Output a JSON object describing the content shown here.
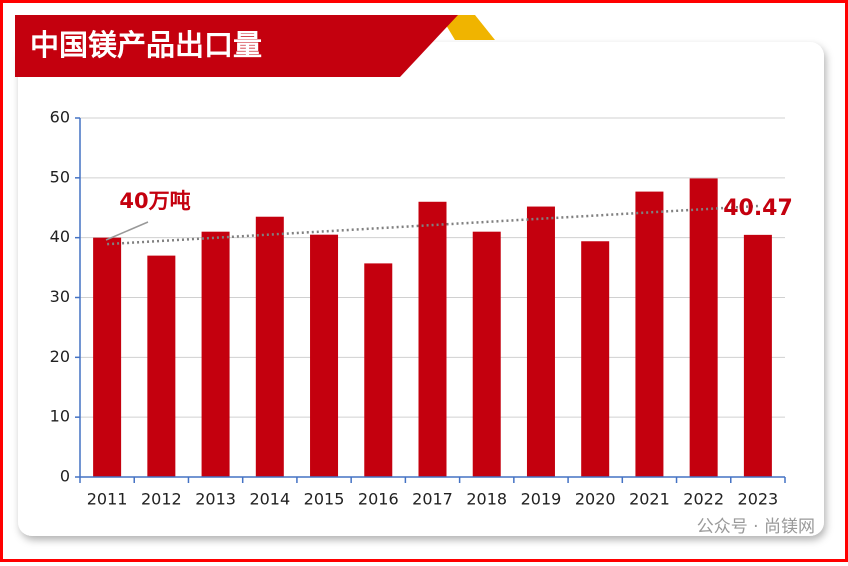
{
  "chart_data": {
    "type": "bar",
    "title": "中国镁产品出口量",
    "categories": [
      "2011",
      "2012",
      "2013",
      "2014",
      "2015",
      "2016",
      "2017",
      "2018",
      "2019",
      "2020",
      "2021",
      "2022",
      "2023"
    ],
    "values": [
      40,
      37,
      41,
      43.5,
      40.5,
      35.7,
      46,
      41,
      45.2,
      39.4,
      47.7,
      49.9,
      40.47
    ],
    "color": "#c4000e",
    "ylim": [
      0,
      60
    ],
    "yticks": [
      0,
      10,
      20,
      30,
      40,
      50,
      60
    ],
    "grid": true,
    "trendline": true,
    "annotations": [
      "40万吨",
      "40.47"
    ],
    "watermark": "公众号 · 尚镁网"
  }
}
